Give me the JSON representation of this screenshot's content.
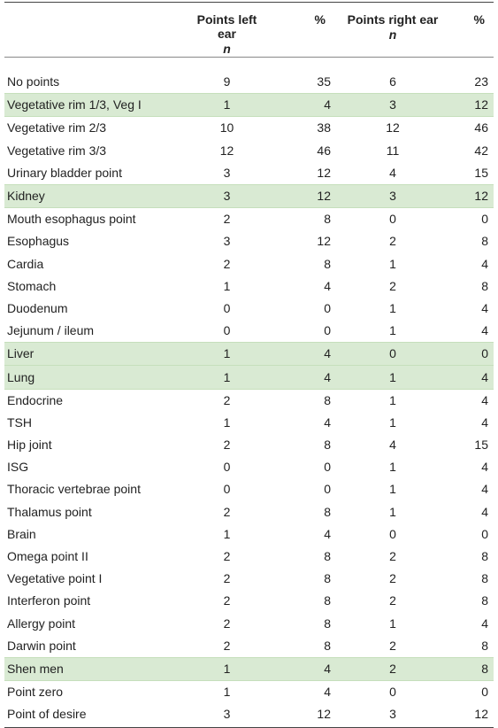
{
  "table": {
    "headers": [
      {
        "line1": "",
        "line2": ""
      },
      {
        "line1": "Points left ear",
        "line2": "n"
      },
      {
        "line1": "%",
        "line2": ""
      },
      {
        "line1": "Points right ear",
        "line2": "n"
      },
      {
        "line1": "%",
        "line2": ""
      }
    ],
    "rows": [
      {
        "label": "No points",
        "left_n": "9",
        "left_pct": "35",
        "right_n": "6",
        "right_pct": "23",
        "highlight": false
      },
      {
        "label": "Vegetative rim 1/3, Veg I",
        "left_n": "1",
        "left_pct": "4",
        "right_n": "3",
        "right_pct": "12",
        "highlight": true
      },
      {
        "label": "Vegetative rim 2/3",
        "left_n": "10",
        "left_pct": "38",
        "right_n": "12",
        "right_pct": "46",
        "highlight": false
      },
      {
        "label": "Vegetative rim 3/3",
        "left_n": "12",
        "left_pct": "46",
        "right_n": "11",
        "right_pct": "42",
        "highlight": false
      },
      {
        "label": "Urinary bladder point",
        "left_n": "3",
        "left_pct": "12",
        "right_n": "4",
        "right_pct": "15",
        "highlight": false
      },
      {
        "label": "Kidney",
        "left_n": "3",
        "left_pct": "12",
        "right_n": "3",
        "right_pct": "12",
        "highlight": true
      },
      {
        "label": "Mouth esophagus point",
        "left_n": "2",
        "left_pct": "8",
        "right_n": "0",
        "right_pct": "0",
        "highlight": false
      },
      {
        "label": "Esophagus",
        "left_n": "3",
        "left_pct": "12",
        "right_n": "2",
        "right_pct": "8",
        "highlight": false
      },
      {
        "label": "Cardia",
        "left_n": "2",
        "left_pct": "8",
        "right_n": "1",
        "right_pct": "4",
        "highlight": false
      },
      {
        "label": "Stomach",
        "left_n": "1",
        "left_pct": "4",
        "right_n": "2",
        "right_pct": "8",
        "highlight": false
      },
      {
        "label": "Duodenum",
        "left_n": "0",
        "left_pct": "0",
        "right_n": "1",
        "right_pct": "4",
        "highlight": false
      },
      {
        "label": "Jejunum / ileum",
        "left_n": "0",
        "left_pct": "0",
        "right_n": "1",
        "right_pct": "4",
        "highlight": false
      },
      {
        "label": "Liver",
        "left_n": "1",
        "left_pct": "4",
        "right_n": "0",
        "right_pct": "0",
        "highlight": true
      },
      {
        "label": "Lung",
        "left_n": "1",
        "left_pct": "4",
        "right_n": "1",
        "right_pct": "4",
        "highlight": true
      },
      {
        "label": "Endocrine",
        "left_n": "2",
        "left_pct": "8",
        "right_n": "1",
        "right_pct": "4",
        "highlight": false
      },
      {
        "label": "TSH",
        "left_n": "1",
        "left_pct": "4",
        "right_n": "1",
        "right_pct": "4",
        "highlight": false
      },
      {
        "label": "Hip joint",
        "left_n": "2",
        "left_pct": "8",
        "right_n": "4",
        "right_pct": "15",
        "highlight": false
      },
      {
        "label": "ISG",
        "left_n": "0",
        "left_pct": "0",
        "right_n": "1",
        "right_pct": "4",
        "highlight": false
      },
      {
        "label": "Thoracic vertebrae point",
        "left_n": "0",
        "left_pct": "0",
        "right_n": "1",
        "right_pct": "4",
        "highlight": false
      },
      {
        "label": "Thalamus point",
        "left_n": "2",
        "left_pct": "8",
        "right_n": "1",
        "right_pct": "4",
        "highlight": false
      },
      {
        "label": "Brain",
        "left_n": "1",
        "left_pct": "4",
        "right_n": "0",
        "right_pct": "0",
        "highlight": false
      },
      {
        "label": "Omega point II",
        "left_n": "2",
        "left_pct": "8",
        "right_n": "2",
        "right_pct": "8",
        "highlight": false
      },
      {
        "label": "Vegetative point I",
        "left_n": "2",
        "left_pct": "8",
        "right_n": "2",
        "right_pct": "8",
        "highlight": false
      },
      {
        "label": "Interferon point",
        "left_n": "2",
        "left_pct": "8",
        "right_n": "2",
        "right_pct": "8",
        "highlight": false
      },
      {
        "label": "Allergy point",
        "left_n": "2",
        "left_pct": "8",
        "right_n": "1",
        "right_pct": "4",
        "highlight": false
      },
      {
        "label": "Darwin point",
        "left_n": "2",
        "left_pct": "8",
        "right_n": "2",
        "right_pct": "8",
        "highlight": false
      },
      {
        "label": "Shen men",
        "left_n": "1",
        "left_pct": "4",
        "right_n": "2",
        "right_pct": "8",
        "highlight": true
      },
      {
        "label": "Point zero",
        "left_n": "1",
        "left_pct": "4",
        "right_n": "0",
        "right_pct": "0",
        "highlight": false
      },
      {
        "label": "Point of desire",
        "left_n": "3",
        "left_pct": "12",
        "right_n": "3",
        "right_pct": "12",
        "highlight": false
      }
    ],
    "highlight_color": "#d9ead3"
  }
}
